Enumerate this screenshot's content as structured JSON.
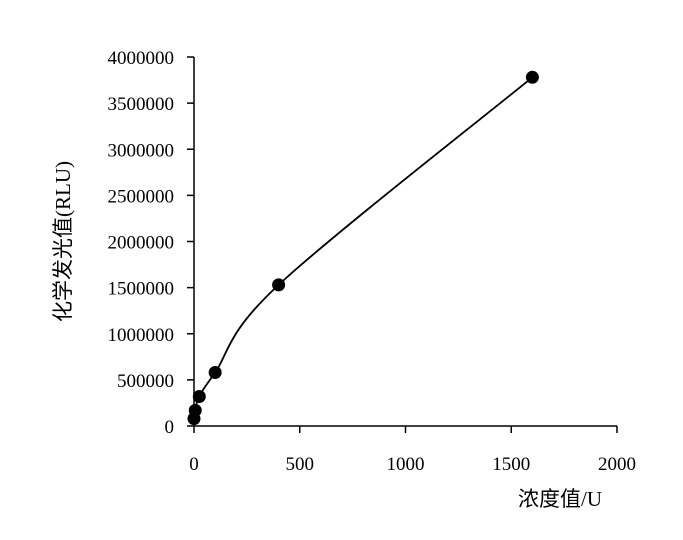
{
  "chart_data": {
    "type": "scatter",
    "xlabel": "浓度值/U",
    "ylabel": "化学发光值(RLU)",
    "xlim": [
      0,
      2000
    ],
    "ylim": [
      0,
      4000000
    ],
    "x_ticks": [
      "0",
      "500",
      "1000",
      "1500",
      "2000"
    ],
    "x_tick_values": [
      0,
      500,
      1000,
      1500,
      2000
    ],
    "y_ticks": [
      "0",
      "500000",
      "1000000",
      "1500000",
      "2000000",
      "2500000",
      "3000000",
      "3500000",
      "4000000"
    ],
    "y_tick_values": [
      0,
      500000,
      1000000,
      1500000,
      2000000,
      2500000,
      3000000,
      3500000,
      4000000
    ],
    "grid": false,
    "legend": "none",
    "series": [
      {
        "values": [
          {
            "x": 0,
            "y": 80000
          },
          {
            "x": 6,
            "y": 170000
          },
          {
            "x": 25,
            "y": 320000
          },
          {
            "x": 100,
            "y": 580000
          },
          {
            "x": 400,
            "y": 1530000
          },
          {
            "x": 1600,
            "y": 3780000
          }
        ],
        "trendline": "smooth",
        "color": "#000000"
      }
    ]
  }
}
